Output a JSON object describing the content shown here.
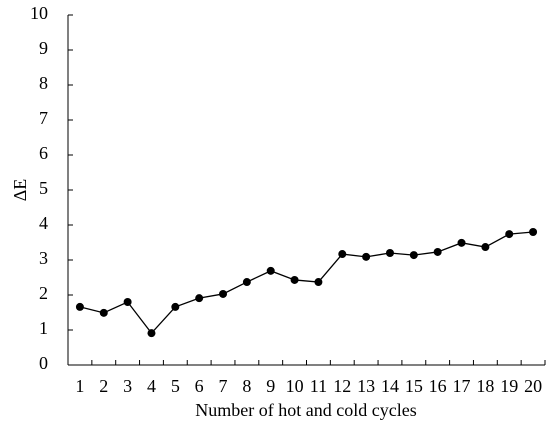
{
  "chart_data": {
    "type": "line",
    "x_label": "Number of hot and cold cycles",
    "y_label": "ΔE",
    "categories": [
      "1",
      "2",
      "3",
      "4",
      "5",
      "6",
      "7",
      "8",
      "9",
      "10",
      "11",
      "12",
      "13",
      "14",
      "15",
      "16",
      "17",
      "18",
      "19",
      "20"
    ],
    "values": [
      1.66,
      1.49,
      1.8,
      0.91,
      1.66,
      1.91,
      2.03,
      2.37,
      2.69,
      2.43,
      2.37,
      3.17,
      3.09,
      3.2,
      3.14,
      3.23,
      3.49,
      3.37,
      3.74,
      3.8
    ],
    "color": "#000000",
    "ylim": [
      0,
      10
    ],
    "yticks": [
      0,
      1,
      2,
      3,
      4,
      5,
      6,
      7,
      8,
      9,
      10
    ],
    "grid": false
  }
}
